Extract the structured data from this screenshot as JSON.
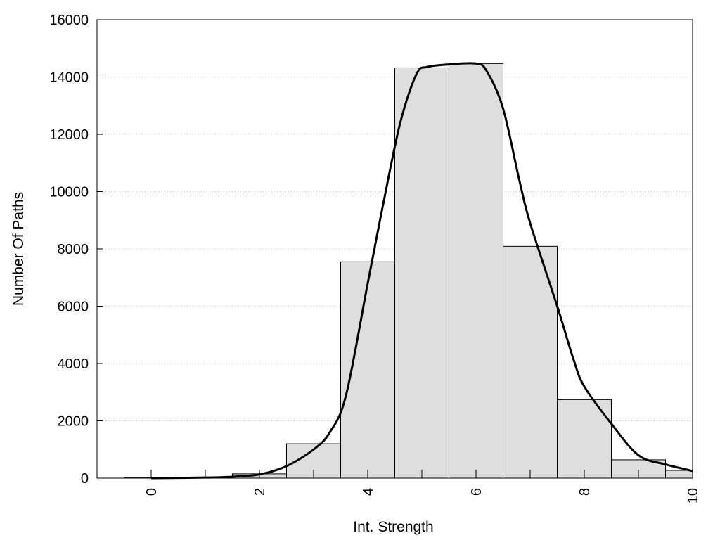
{
  "chart_data": {
    "type": "bar",
    "title": "",
    "xlabel": "Int. Strength",
    "ylabel": "Number Of Paths",
    "xlim": [
      -1,
      10
    ],
    "ylim": [
      0,
      16000
    ],
    "x_ticks": [
      0,
      2,
      4,
      6,
      8,
      10
    ],
    "y_ticks": [
      0,
      2000,
      4000,
      6000,
      8000,
      10000,
      12000,
      14000,
      16000
    ],
    "grid": "horizontal dotted",
    "bars": {
      "bin_centers": [
        0,
        1,
        2,
        3,
        4,
        5,
        6,
        7,
        8,
        9,
        10
      ],
      "values": [
        10,
        30,
        150,
        1200,
        7550,
        14320,
        14470,
        8090,
        2740,
        640,
        270
      ],
      "fill": "#dedede",
      "stroke": "#000000"
    },
    "fit_curve": {
      "color": "#000000",
      "points": [
        [
          0,
          0
        ],
        [
          1,
          20
        ],
        [
          1.5,
          50
        ],
        [
          2,
          130
        ],
        [
          2.5,
          420
        ],
        [
          3,
          1000
        ],
        [
          3.3,
          1600
        ],
        [
          3.6,
          2900
        ],
        [
          4,
          6800
        ],
        [
          4.3,
          9700
        ],
        [
          4.6,
          12400
        ],
        [
          4.9,
          14100
        ],
        [
          5.1,
          14350
        ],
        [
          5.5,
          14440
        ],
        [
          6,
          14470
        ],
        [
          6.2,
          14200
        ],
        [
          6.5,
          12900
        ],
        [
          6.8,
          10400
        ],
        [
          7,
          8900
        ],
        [
          7.5,
          6000
        ],
        [
          7.8,
          4150
        ],
        [
          8,
          3200
        ],
        [
          8.5,
          1900
        ],
        [
          9,
          800
        ],
        [
          9.5,
          480
        ],
        [
          10,
          250
        ]
      ]
    }
  }
}
